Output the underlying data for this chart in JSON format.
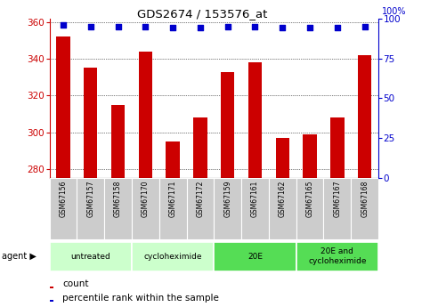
{
  "title": "GDS2674 / 153576_at",
  "samples": [
    "GSM67156",
    "GSM67157",
    "GSM67158",
    "GSM67170",
    "GSM67171",
    "GSM67172",
    "GSM67159",
    "GSM67161",
    "GSM67162",
    "GSM67165",
    "GSM67167",
    "GSM67168"
  ],
  "counts": [
    352,
    335,
    315,
    344,
    295,
    308,
    333,
    338,
    297,
    299,
    308,
    342
  ],
  "percentiles": [
    96,
    95,
    95,
    95,
    94,
    94,
    95,
    95,
    94,
    94,
    94,
    95
  ],
  "ylim_left": [
    275,
    362
  ],
  "ylim_right": [
    0,
    100
  ],
  "yticks_left": [
    280,
    300,
    320,
    340,
    360
  ],
  "yticks_right": [
    0,
    25,
    50,
    75,
    100
  ],
  "bar_color": "#cc0000",
  "dot_color": "#0000cc",
  "bg_color": "#ffffff",
  "groups_info": [
    [
      0,
      3,
      "untreated",
      "#ccffcc"
    ],
    [
      3,
      6,
      "cycloheximide",
      "#ccffcc"
    ],
    [
      6,
      9,
      "20E",
      "#55dd55"
    ],
    [
      9,
      12,
      "20E and\ncycloheximide",
      "#55dd55"
    ]
  ],
  "bar_width": 0.5,
  "gray_color": "#cccccc"
}
